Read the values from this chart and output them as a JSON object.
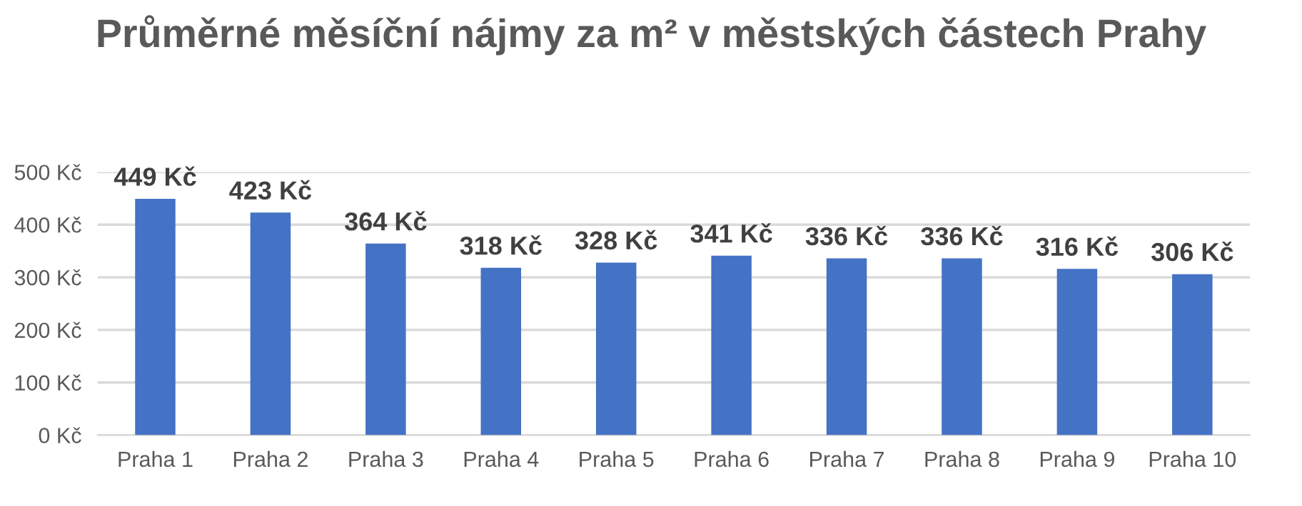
{
  "chart_data": {
    "type": "bar",
    "title": "Průměrné měsíční nájmy za m² v městských částech Prahy",
    "categories": [
      "Praha 1",
      "Praha 2",
      "Praha 3",
      "Praha 4",
      "Praha 5",
      "Praha 6",
      "Praha 7",
      "Praha 8",
      "Praha 9",
      "Praha 10"
    ],
    "values": [
      449,
      423,
      364,
      318,
      328,
      341,
      336,
      336,
      316,
      306
    ],
    "value_labels": [
      "449 Kč",
      "423 Kč",
      "364 Kč",
      "318 Kč",
      "328 Kč",
      "341 Kč",
      "336 Kč",
      "336 Kč",
      "316 Kč",
      "306 Kč"
    ],
    "color": "#4472c4",
    "ylim": [
      0,
      500
    ],
    "yticks": [
      {
        "value": 0,
        "label": "0 Kč"
      },
      {
        "value": 100,
        "label": "100 Kč"
      },
      {
        "value": 200,
        "label": "200 Kč"
      },
      {
        "value": 300,
        "label": "300 Kč"
      },
      {
        "value": 400,
        "label": "400 Kč"
      },
      {
        "value": 500,
        "label": "500 Kč"
      }
    ],
    "grid": "y"
  }
}
